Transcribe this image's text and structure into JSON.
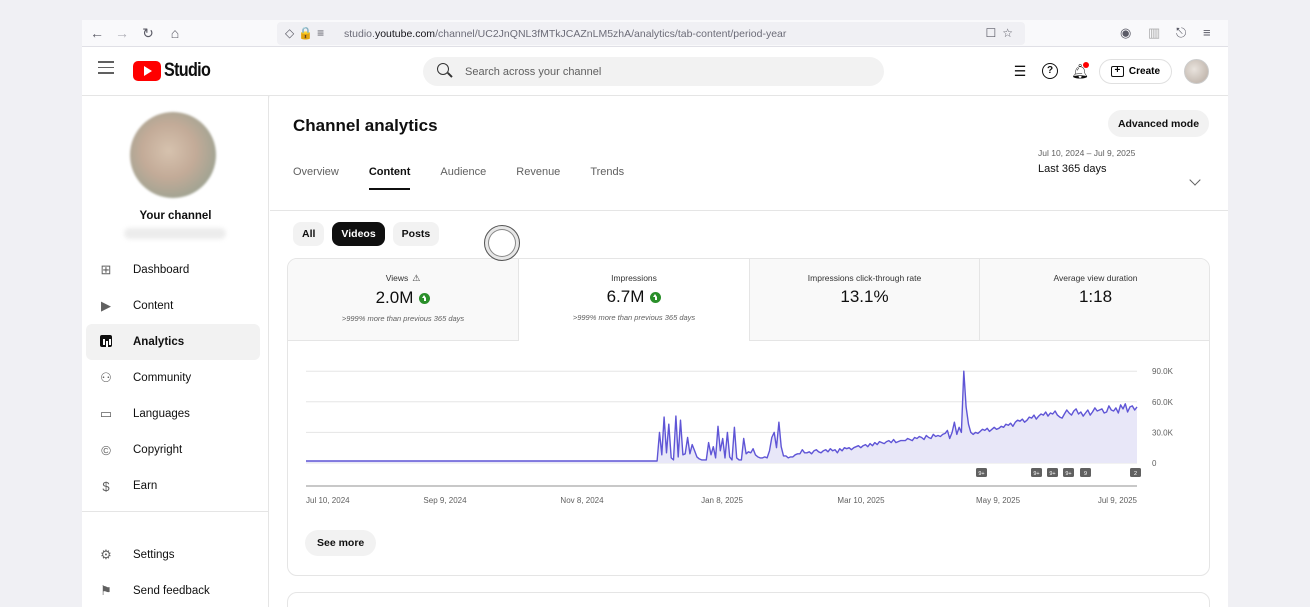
{
  "browser": {
    "url_prefix": "studio.",
    "url_domain": "youtube.com",
    "url_path": "/channel/UC2JnQNL3fMTkJCAZnLM5zhA/analytics/tab-content/period-year"
  },
  "header": {
    "logo_text": "Studio",
    "search_placeholder": "Search across your channel",
    "create_label": "Create"
  },
  "sidebar": {
    "channel_label": "Your channel",
    "items": [
      {
        "label": "Dashboard",
        "icon": "dashboard-icon"
      },
      {
        "label": "Content",
        "icon": "content-icon"
      },
      {
        "label": "Analytics",
        "icon": "analytics-icon",
        "active": true
      },
      {
        "label": "Community",
        "icon": "community-icon"
      },
      {
        "label": "Languages",
        "icon": "languages-icon"
      },
      {
        "label": "Copyright",
        "icon": "copyright-icon"
      },
      {
        "label": "Earn",
        "icon": "earn-icon"
      },
      {
        "label": "Settings",
        "icon": "settings-icon"
      },
      {
        "label": "Send feedback",
        "icon": "feedback-icon"
      }
    ]
  },
  "main": {
    "title": "Channel analytics",
    "advanced_mode_label": "Advanced mode",
    "tabs": [
      {
        "label": "Overview"
      },
      {
        "label": "Content",
        "active": true
      },
      {
        "label": "Audience"
      },
      {
        "label": "Revenue"
      },
      {
        "label": "Trends"
      }
    ],
    "date_range_sub": "Jul 10, 2024 – Jul 9, 2025",
    "date_range_main": "Last 365 days",
    "chips": [
      {
        "label": "All"
      },
      {
        "label": "Videos",
        "active": true
      },
      {
        "label": "Posts"
      }
    ],
    "metrics": [
      {
        "label": "Views",
        "value": "2.0M",
        "note": ">999% more than previous 365 days",
        "up": true,
        "warning": true
      },
      {
        "label": "Impressions",
        "value": "6.7M",
        "note": ">999% more than previous 365 days",
        "up": true,
        "selected": true
      },
      {
        "label": "Impressions click-through rate",
        "value": "13.1%"
      },
      {
        "label": "Average view duration",
        "value": "1:18"
      }
    ],
    "see_more_label": "See more"
  },
  "colors": {
    "accent_line": "#5f55d6",
    "accent_fill": "#e8e7f8",
    "brand_red": "#ff0000",
    "up_green": "#2a8f2a"
  },
  "chart_data": {
    "type": "area",
    "series": [
      {
        "values": [
          2000,
          2000,
          2000,
          2000,
          2000,
          2000,
          2000,
          2000,
          2000,
          2000,
          2000,
          2000,
          2000,
          2000,
          2000,
          2000,
          2000,
          2000,
          2000,
          2000,
          2000,
          2000,
          2000,
          2000,
          2000,
          2000,
          2000,
          2000,
          2000,
          2000,
          2000,
          2000,
          2000,
          2000,
          2000,
          2000,
          2000,
          2000,
          2000,
          2000,
          2000,
          2000,
          2000,
          2000,
          2000,
          2000,
          2000,
          2000,
          2000,
          2000,
          2000,
          2000,
          2000,
          2000,
          2000,
          2000,
          2000,
          2000,
          2000,
          2000,
          2000,
          2000,
          2000,
          2000,
          2000,
          2000,
          2000,
          2000,
          2000,
          2000,
          2000,
          2000,
          2000,
          2000,
          2000,
          2000,
          2000,
          2000,
          2000,
          2000,
          2000,
          2000,
          2000,
          2000,
          2000,
          2000,
          2000,
          2000,
          2000,
          2000,
          2000,
          2000,
          2000,
          2000,
          2000,
          2000,
          2000,
          2000,
          2000,
          2000,
          2000,
          2000,
          2000,
          2000,
          2000,
          2000,
          2000,
          2000,
          2000,
          2000,
          2000,
          2000,
          2000,
          2000,
          2000,
          2000,
          2000,
          2000,
          2000,
          2000,
          2000,
          2000,
          2000,
          2000,
          2000,
          2000,
          2000,
          2000,
          2000,
          2000,
          2000,
          2000,
          2000,
          2000,
          2000,
          2000,
          2000,
          2000,
          2000,
          2000,
          2000,
          2000,
          2000,
          2000,
          2000,
          2000,
          2000,
          2000,
          2000,
          2000,
          2000,
          30000,
          8000,
          45000,
          10000,
          38000,
          5000,
          3000,
          46000,
          6000,
          42000,
          8000,
          9000,
          25000,
          9000,
          18000,
          12000,
          6000,
          4000,
          3000,
          3000,
          3000,
          20000,
          8000,
          16000,
          5000,
          36000,
          12000,
          24000,
          5000,
          30000,
          6000,
          3000,
          35000,
          5000,
          3000,
          3000,
          24000,
          9000,
          11000,
          10000,
          14000,
          8000,
          6000,
          5000,
          5000,
          6000,
          5000,
          12000,
          25000,
          30000,
          15000,
          40000,
          16000,
          7000,
          7000,
          5000,
          6000,
          6000,
          8000,
          9000,
          9000,
          13000,
          10000,
          10000,
          11000,
          9000,
          12000,
          13000,
          11000,
          10000,
          12000,
          13000,
          11000,
          14000,
          12000,
          13000,
          10000,
          14000,
          12000,
          15000,
          14000,
          15000,
          13000,
          15000,
          16000,
          17000,
          15000,
          17000,
          18000,
          16000,
          19000,
          17000,
          20000,
          18000,
          21000,
          20000,
          19000,
          21000,
          22000,
          20000,
          23000,
          20000,
          21000,
          22000,
          22000,
          22000,
          24000,
          23000,
          22000,
          25000,
          24000,
          26000,
          25000,
          23000,
          27000,
          25000,
          24000,
          28000,
          26000,
          27000,
          26000,
          28000,
          29000,
          32000,
          24000,
          30000,
          40000,
          28000,
          35000,
          30000,
          90000,
          55000,
          38000,
          30000,
          28000,
          30000,
          29000,
          31000,
          33000,
          32000,
          34000,
          31000,
          33000,
          35000,
          33000,
          34000,
          36000,
          35000,
          38000,
          37000,
          39000,
          36000,
          40000,
          42000,
          41000,
          43000,
          40000,
          42000,
          45000,
          44000,
          47000,
          43000,
          46000,
          48000,
          47000,
          50000,
          46000,
          49000,
          48000,
          51000,
          47000,
          45000,
          44000,
          48000,
          52000,
          49000,
          47000,
          51000,
          53000,
          48000,
          50000,
          46000,
          49000,
          52000,
          47000,
          50000,
          54000,
          51000,
          52000,
          53000,
          49000,
          50000,
          56000,
          52000,
          51000,
          54000,
          49000,
          57000,
          53000,
          58000,
          50000,
          55000,
          56000,
          52000,
          55000
        ]
      }
    ],
    "x_tick_labels": [
      "Jul 10, 2024",
      "Sep 9, 2024",
      "Nov 8, 2024",
      "Jan 8, 2025",
      "Mar 10, 2025",
      "May 9, 2025",
      "Jul 9, 2025"
    ],
    "y_tick_labels": [
      "90.0K",
      "60.0K",
      "30.0K",
      "0"
    ],
    "y_ticks": [
      90000,
      60000,
      30000,
      0
    ],
    "ylim": [
      0,
      100000
    ],
    "markers": [
      "9+",
      "9+",
      "9+",
      "9+",
      "9",
      "2"
    ],
    "grid": true
  }
}
